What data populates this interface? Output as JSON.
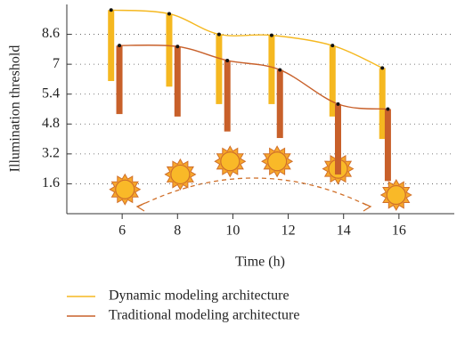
{
  "chart_data": {
    "type": "range-line",
    "xlabel": "Time (h)",
    "ylabel": "Illumination threshold",
    "xlim": [
      4,
      18
    ],
    "xticks": [
      6,
      8,
      10,
      12,
      14,
      16
    ],
    "ylim": [
      0,
      10.2
    ],
    "yticks": [
      1.6,
      3.2,
      4.8,
      5.4,
      7.0,
      8.6
    ],
    "grid": true,
    "legend": "bottom",
    "series": [
      {
        "name": "Dynamic modeling architecture",
        "color": "#f5b820",
        "x": [
          5.6,
          7.7,
          9.5,
          11.4,
          13.6,
          15.4
        ],
        "values": [
          9.9,
          9.7,
          8.6,
          8.55,
          8.0,
          6.8
        ],
        "lows": [
          6.1,
          5.8,
          5.2,
          5.2,
          4.95,
          4.0
        ]
      },
      {
        "name": "Traditional modeling architecture",
        "color": "#c8602a",
        "x": [
          5.9,
          8.0,
          9.8,
          11.7,
          13.8,
          15.6
        ],
        "values": [
          8.0,
          7.95,
          7.2,
          6.7,
          5.2,
          5.1
        ],
        "lows": [
          5.0,
          4.95,
          4.4,
          4.05,
          2.1,
          1.75
        ]
      }
    ],
    "suns": {
      "x": [
        6.1,
        8.1,
        9.9,
        11.6,
        13.8,
        15.9
      ],
      "values": [
        1.3,
        2.1,
        2.8,
        2.8,
        2.4,
        1.0
      ]
    }
  }
}
